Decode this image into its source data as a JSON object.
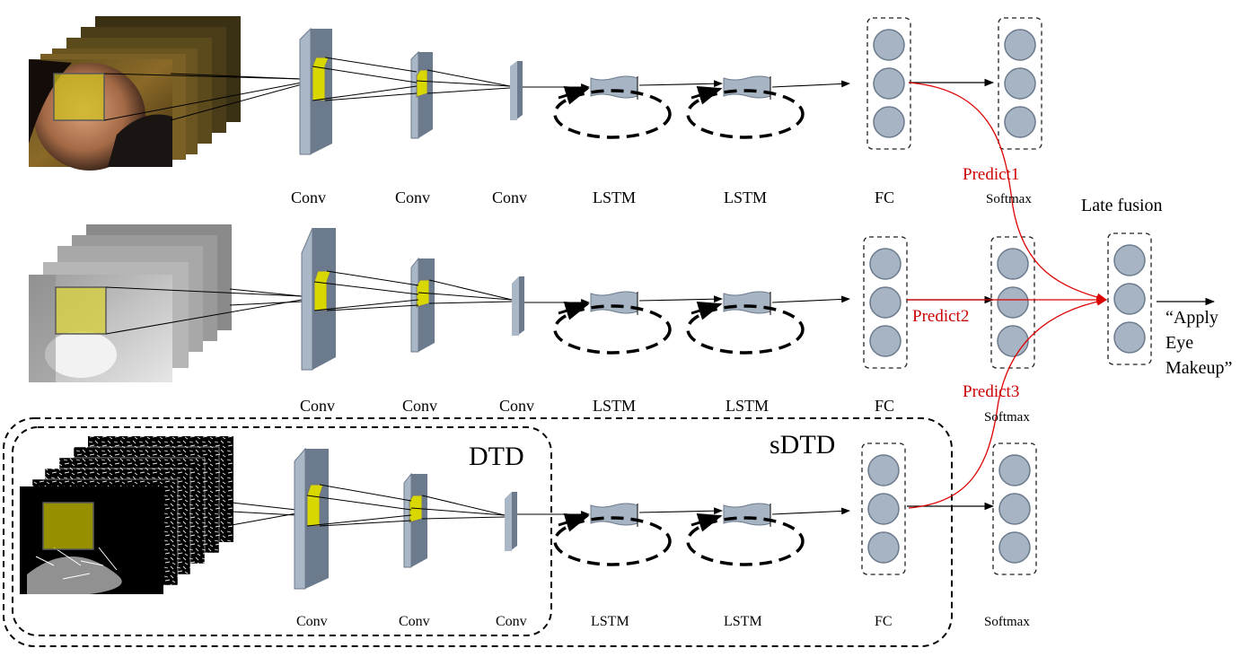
{
  "rows": [
    {
      "labels": {
        "conv1": "Conv",
        "conv2": "Conv",
        "conv3": "Conv",
        "lstm1": "LSTM",
        "lstm2": "LSTM",
        "fc": "FC",
        "softmax": "Softmax"
      }
    },
    {
      "labels": {
        "conv1": "Conv",
        "conv2": "Conv",
        "conv3": "Conv",
        "lstm1": "LSTM",
        "lstm2": "LSTM",
        "fc": "FC",
        "softmax": "Softmax"
      }
    },
    {
      "labels": {
        "conv1": "Conv",
        "conv2": "Conv",
        "conv3": "Conv",
        "lstm1": "LSTM",
        "lstm2": "LSTM",
        "fc": "FC",
        "softmax": "Softmax"
      }
    }
  ],
  "predictions": [
    "Predict1",
    "Predict2",
    "Predict3"
  ],
  "fusion": {
    "title": "Late fusion",
    "output_lines": [
      "“Apply",
      "Eye",
      "Makeup”"
    ]
  },
  "groups": {
    "inner": "DTD",
    "outer": "sDTD"
  },
  "colors": {
    "node_fill": "#a7b4c4",
    "conv_front": "#aab7c7",
    "conv_side": "#6b7a8c",
    "kernel": "#d8d800",
    "arrow_red": "#cc0000"
  }
}
